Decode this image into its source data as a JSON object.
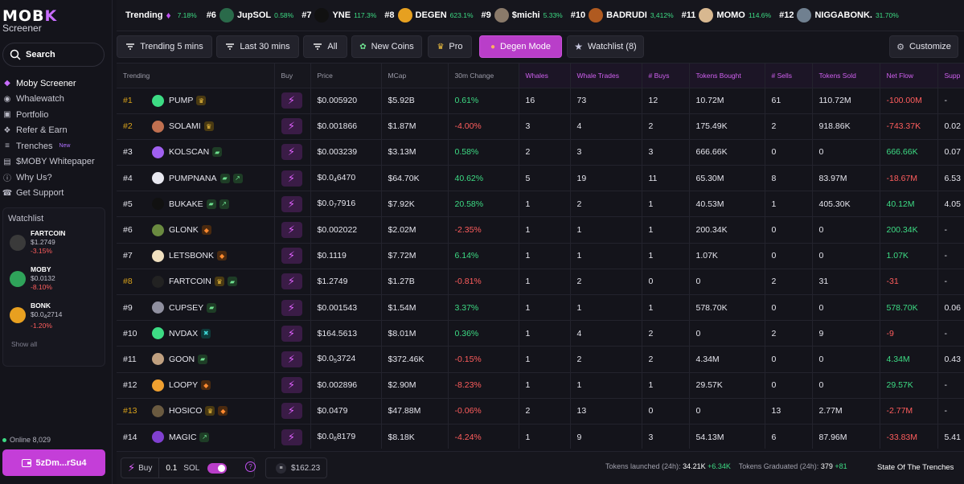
{
  "brand": {
    "logo_main": "MOB",
    "logo_accent": "K",
    "logo_sub": "Screener"
  },
  "search": {
    "label": "Search"
  },
  "nav": [
    {
      "label": "Moby Screener",
      "icon": "moby-icon",
      "active": true
    },
    {
      "label": "Whalewatch",
      "icon": "eye-icon"
    },
    {
      "label": "Portfolio",
      "icon": "wallet-icon"
    },
    {
      "label": "Refer & Earn",
      "icon": "gift-icon"
    },
    {
      "label": "Trenches",
      "icon": "trench-icon",
      "tag": "New"
    },
    {
      "label": "$MOBY Whitepaper",
      "icon": "document-icon"
    },
    {
      "label": "Why Us?",
      "icon": "info-icon"
    },
    {
      "label": "Get Support",
      "icon": "support-icon"
    }
  ],
  "watchlist": {
    "title": "Watchlist",
    "items": [
      {
        "name": "FARTCOIN",
        "price": "$1.2749",
        "change": "-3.15%",
        "color": "#3a3a3a"
      },
      {
        "name": "MOBY",
        "price": "$0.0132",
        "change": "-8.10%",
        "color": "#2fa35a"
      },
      {
        "name": "BONK",
        "price_prefix": "$0.0",
        "price_sub": "4",
        "price_rest": "2714",
        "change": "-1.20%",
        "color": "#e8a020"
      }
    ],
    "show_all": "Show all"
  },
  "online": {
    "label": "Online 8,029"
  },
  "wallet": {
    "label": "5zDm...rSu4"
  },
  "ticker": {
    "label": "Trending",
    "pct": "7.18%",
    "items": [
      {
        "rank": "#6",
        "name": "JupSOL",
        "change": "0.58%",
        "color": "#2a6a4a"
      },
      {
        "rank": "#7",
        "name": "YNE",
        "change": "117.3%",
        "color": "#111111"
      },
      {
        "rank": "#8",
        "name": "DEGEN",
        "change": "623.1%",
        "color": "#e6a020"
      },
      {
        "rank": "#9",
        "name": "$michi",
        "change": "5.33%",
        "color": "#8a7a6a"
      },
      {
        "rank": "#10",
        "name": "BADRUDI",
        "change": "3,412%",
        "color": "#b05a20"
      },
      {
        "rank": "#11",
        "name": "MOMO",
        "change": "114.6%",
        "color": "#d8b890"
      },
      {
        "rank": "#12",
        "name": "NIGGABONK.",
        "change": "31.70%",
        "color": "#708090"
      }
    ]
  },
  "toolbar": {
    "trending5": "Trending 5 mins",
    "last30": "Last 30 mins",
    "all": "All",
    "new_coins": "New Coins",
    "pro": "Pro",
    "degen": "Degen Mode",
    "watchlist": "Watchlist (8)",
    "customize": "Customize"
  },
  "table": {
    "headers": [
      "Trending",
      "Buy",
      "Price",
      "MCap",
      "30m Change",
      "Whales",
      "Whale Trades",
      "# Buys",
      "Tokens Bought",
      "# Sells",
      "Tokens Sold",
      "Net Flow",
      "Supp"
    ],
    "rows": [
      {
        "rank": "#1",
        "gold": true,
        "name": "PUMP",
        "badges": [
          "crown"
        ],
        "color": "#3ddc84",
        "price": "$0.005920",
        "mcap": "$5.92B",
        "chg": "0.61%",
        "chg_pos": true,
        "whales": "16",
        "wtrades": "73",
        "buys": "12",
        "tbought": "10.72M",
        "sells": "61",
        "tsold": "110.72M",
        "net": "-100.00M",
        "net_pos": false,
        "supp": "-"
      },
      {
        "rank": "#2",
        "gold": true,
        "name": "SOLAMI",
        "badges": [
          "crown"
        ],
        "color": "#c07050",
        "price": "$0.001866",
        "mcap": "$1.87M",
        "chg": "-4.00%",
        "chg_pos": false,
        "whales": "3",
        "wtrades": "4",
        "buys": "2",
        "tbought": "175.49K",
        "sells": "2",
        "tsold": "918.86K",
        "net": "-743.37K",
        "net_pos": false,
        "supp": "0.02"
      },
      {
        "rank": "#3",
        "gold": false,
        "name": "KOLSCAN",
        "badges": [
          "pill"
        ],
        "color": "#a060f0",
        "price": "$0.003239",
        "mcap": "$3.13M",
        "chg": "0.58%",
        "chg_pos": true,
        "whales": "2",
        "wtrades": "3",
        "buys": "3",
        "tbought": "666.66K",
        "sells": "0",
        "tsold": "0",
        "net": "666.66K",
        "net_pos": true,
        "supp": "0.07"
      },
      {
        "rank": "#4",
        "gold": false,
        "name": "PUMPNANA",
        "badges": [
          "pill",
          "leaf"
        ],
        "color": "#e8e8f0",
        "price_prefix": "$0.0",
        "price_sub": "4",
        "price_rest": "6470",
        "mcap": "$64.70K",
        "chg": "40.62%",
        "chg_pos": true,
        "whales": "5",
        "wtrades": "19",
        "buys": "11",
        "tbought": "65.30M",
        "sells": "8",
        "tsold": "83.97M",
        "net": "-18.67M",
        "net_pos": false,
        "supp": "6.53"
      },
      {
        "rank": "#5",
        "gold": false,
        "name": "BUKAKE",
        "badges": [
          "pill",
          "leaf"
        ],
        "color": "#111111",
        "price_prefix": "$0.0",
        "price_sub": "7",
        "price_rest": "7916",
        "mcap": "$7.92K",
        "chg": "20.58%",
        "chg_pos": true,
        "whales": "1",
        "wtrades": "2",
        "buys": "1",
        "tbought": "40.53M",
        "sells": "1",
        "tsold": "405.30K",
        "net": "40.12M",
        "net_pos": true,
        "supp": "4.05"
      },
      {
        "rank": "#6",
        "gold": false,
        "name": "GLONK",
        "badges": [
          "fire"
        ],
        "color": "#6a8a40",
        "price": "$0.002022",
        "mcap": "$2.02M",
        "chg": "-2.35%",
        "chg_pos": false,
        "whales": "1",
        "wtrades": "1",
        "buys": "1",
        "tbought": "200.34K",
        "sells": "0",
        "tsold": "0",
        "net": "200.34K",
        "net_pos": true,
        "supp": "-"
      },
      {
        "rank": "#7",
        "gold": false,
        "name": "LETSBONK",
        "badges": [
          "fire"
        ],
        "color": "#f0e0c0",
        "price": "$0.1119",
        "mcap": "$7.72M",
        "chg": "6.14%",
        "chg_pos": true,
        "whales": "1",
        "wtrades": "1",
        "buys": "1",
        "tbought": "1.07K",
        "sells": "0",
        "tsold": "0",
        "net": "1.07K",
        "net_pos": true,
        "supp": "-"
      },
      {
        "rank": "#8",
        "gold": true,
        "name": "FARTCOIN",
        "badges": [
          "crown",
          "pill"
        ],
        "color": "#222222",
        "price": "$1.2749",
        "mcap": "$1.27B",
        "chg": "-0.81%",
        "chg_pos": false,
        "whales": "1",
        "wtrades": "2",
        "buys": "0",
        "tbought": "0",
        "sells": "2",
        "tsold": "31",
        "net": "-31",
        "net_pos": false,
        "supp": "-"
      },
      {
        "rank": "#9",
        "gold": false,
        "name": "CUPSEY",
        "badges": [
          "pill"
        ],
        "color": "#9090a0",
        "price": "$0.001543",
        "mcap": "$1.54M",
        "chg": "3.37%",
        "chg_pos": true,
        "whales": "1",
        "wtrades": "1",
        "buys": "1",
        "tbought": "578.70K",
        "sells": "0",
        "tsold": "0",
        "net": "578.70K",
        "net_pos": true,
        "supp": "0.06"
      },
      {
        "rank": "#10",
        "gold": false,
        "name": "NVDAX",
        "badges": [
          "x"
        ],
        "color": "#3ddc84",
        "price": "$164.5613",
        "mcap": "$8.01M",
        "chg": "0.36%",
        "chg_pos": true,
        "whales": "1",
        "wtrades": "4",
        "buys": "2",
        "tbought": "0",
        "sells": "2",
        "tsold": "9",
        "net": "-9",
        "net_pos": false,
        "supp": "-"
      },
      {
        "rank": "#11",
        "gold": false,
        "name": "GOON",
        "badges": [
          "pill"
        ],
        "color": "#c0a080",
        "price_prefix": "$0.0",
        "price_sub": "5",
        "price_rest": "3724",
        "mcap": "$372.46K",
        "chg": "-0.15%",
        "chg_pos": false,
        "whales": "1",
        "wtrades": "2",
        "buys": "2",
        "tbought": "4.34M",
        "sells": "0",
        "tsold": "0",
        "net": "4.34M",
        "net_pos": true,
        "supp": "0.43"
      },
      {
        "rank": "#12",
        "gold": false,
        "name": "LOOPY",
        "badges": [
          "fire"
        ],
        "color": "#f0a030",
        "price": "$0.002896",
        "mcap": "$2.90M",
        "chg": "-8.23%",
        "chg_pos": false,
        "whales": "1",
        "wtrades": "1",
        "buys": "1",
        "tbought": "29.57K",
        "sells": "0",
        "tsold": "0",
        "net": "29.57K",
        "net_pos": true,
        "supp": "-"
      },
      {
        "rank": "#13",
        "gold": true,
        "name": "HOSICO",
        "badges": [
          "crown",
          "fire"
        ],
        "color": "#6a5a40",
        "price": "$0.0479",
        "mcap": "$47.88M",
        "chg": "-0.06%",
        "chg_pos": false,
        "whales": "2",
        "wtrades": "13",
        "buys": "0",
        "tbought": "0",
        "sells": "13",
        "tsold": "2.77M",
        "net": "-2.77M",
        "net_pos": false,
        "supp": "-"
      },
      {
        "rank": "#14",
        "gold": false,
        "name": "MAGIC",
        "badges": [
          "leaf"
        ],
        "color": "#8040d0",
        "price_prefix": "$0.0",
        "price_sub": "6",
        "price_rest": "8179",
        "mcap": "$8.18K",
        "chg": "-4.24%",
        "chg_pos": false,
        "whales": "1",
        "wtrades": "9",
        "buys": "3",
        "tbought": "54.13M",
        "sells": "6",
        "tsold": "87.96M",
        "net": "-33.83M",
        "net_pos": false,
        "supp": "5.41"
      }
    ]
  },
  "bottom": {
    "buy_label": "Buy",
    "amount": "0.1",
    "currency": "SOL",
    "help": "?",
    "sol_price": "$162.23",
    "launched_label": "Tokens launched (24h):",
    "launched_value": "34.21K",
    "launched_delta": "+6.34K",
    "graduated_label": "Tokens Graduated (24h):",
    "graduated_value": "379",
    "graduated_delta": "+81",
    "state": "State Of The Trenches"
  },
  "colors": {
    "accent": "#b93ec9",
    "positive": "#3ddc84",
    "negative": "#ff5d5d",
    "gold": "#d9a21b"
  }
}
